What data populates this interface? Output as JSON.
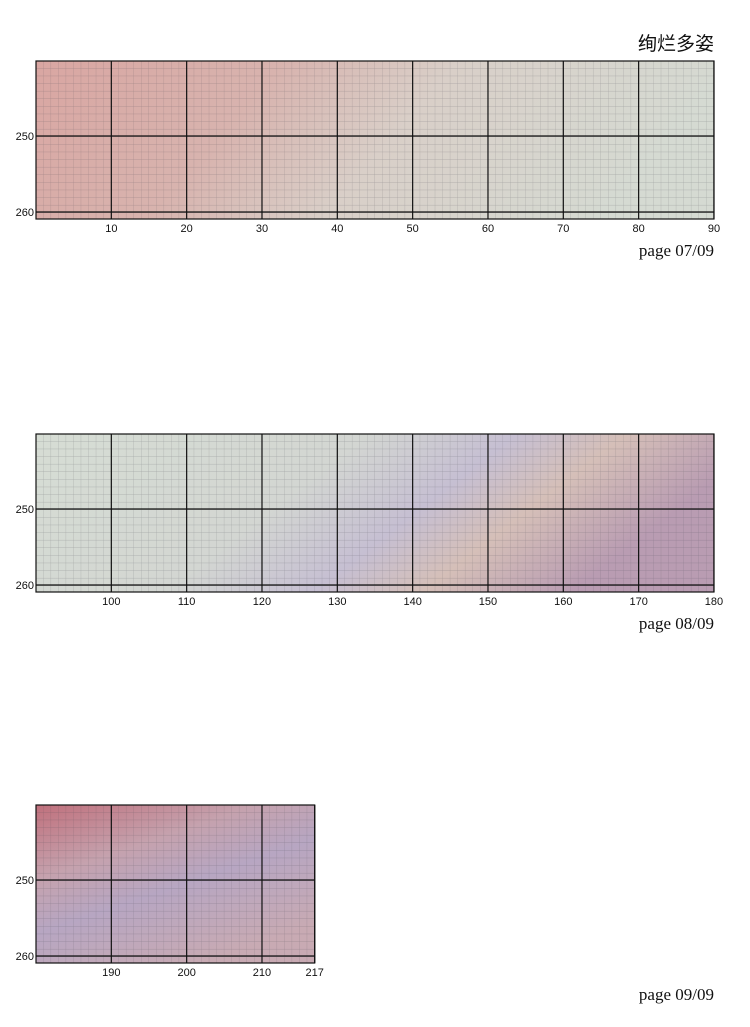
{
  "title": "绚烂多姿",
  "panels": [
    {
      "x_ticks": [
        10,
        20,
        30,
        40,
        50,
        60,
        70,
        80,
        90
      ],
      "y_ticks": [
        250,
        260
      ],
      "page": "page 07/09"
    },
    {
      "x_ticks": [
        100,
        110,
        120,
        130,
        140,
        150,
        160,
        170,
        180
      ],
      "y_ticks": [
        250,
        260
      ],
      "page": "page 08/09"
    },
    {
      "x_ticks": [
        190,
        200,
        210,
        217
      ],
      "y_ticks": [
        250,
        260
      ],
      "page": "page 09/09"
    }
  ]
}
